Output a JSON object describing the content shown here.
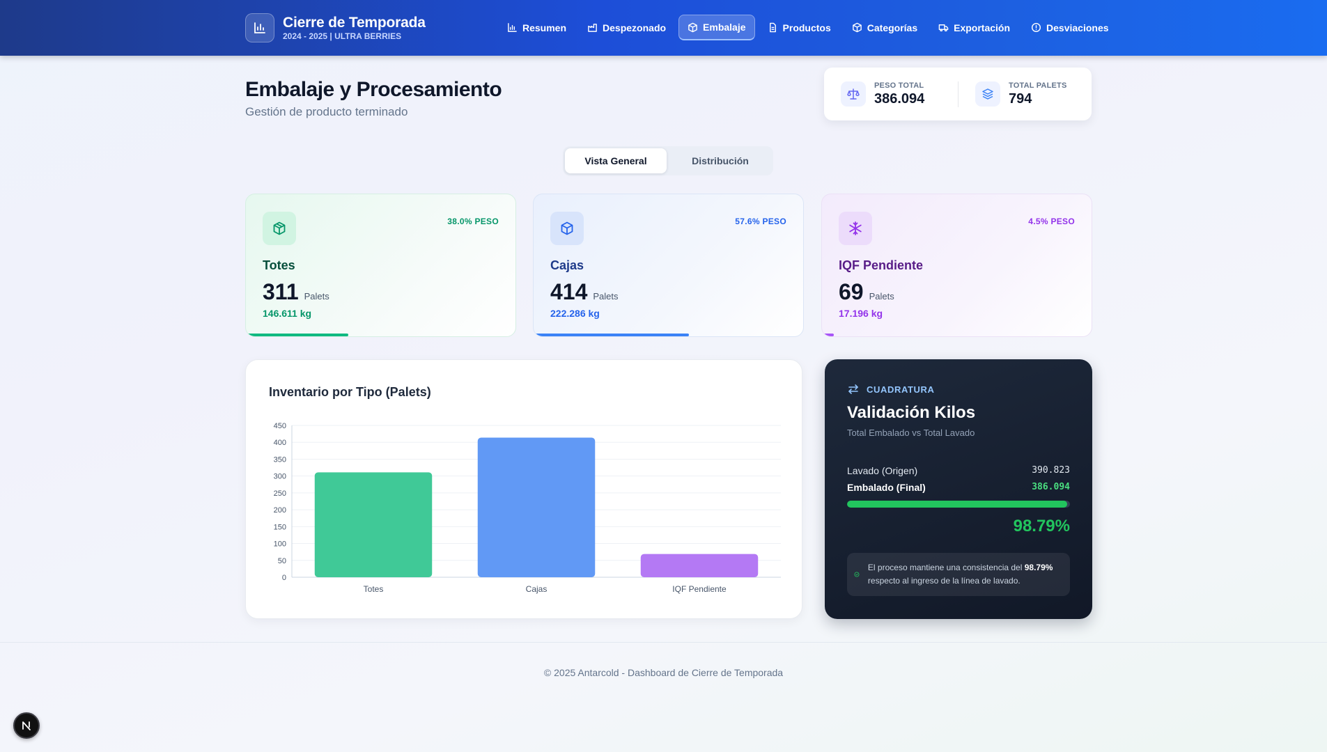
{
  "brand": {
    "title": "Cierre de Temporada",
    "subtitle": "2024 - 2025 | ULTRA BERRIES"
  },
  "nav": [
    {
      "label": "Resumen",
      "icon": "bar-chart-icon"
    },
    {
      "label": "Despezonado",
      "icon": "factory-icon"
    },
    {
      "label": "Embalaje",
      "icon": "box-icon",
      "active": true
    },
    {
      "label": "Productos",
      "icon": "document-icon"
    },
    {
      "label": "Categorías",
      "icon": "cube-icon"
    },
    {
      "label": "Exportación",
      "icon": "truck-icon"
    },
    {
      "label": "Desviaciones",
      "icon": "alert-circle-icon"
    }
  ],
  "page": {
    "title": "Embalaje y Procesamiento",
    "subtitle": "Gestión de producto terminado"
  },
  "stats": {
    "peso_label": "PESO TOTAL",
    "peso_value": "386.094",
    "palets_label": "TOTAL PALETS",
    "palets_value": "794"
  },
  "tabs": [
    {
      "label": "Vista General",
      "active": true
    },
    {
      "label": "Distribución"
    }
  ],
  "cards": [
    {
      "name": "Totes",
      "pct": "38.0% PESO",
      "count": "311",
      "unit": "Palets",
      "kg": "146.611 kg",
      "fill": 0.38,
      "color": "#10b981",
      "icon": "box-icon"
    },
    {
      "name": "Cajas",
      "pct": "57.6% PESO",
      "count": "414",
      "unit": "Palets",
      "kg": "222.286 kg",
      "fill": 0.576,
      "color": "#3b82f6",
      "icon": "box-icon"
    },
    {
      "name": "IQF Pendiente",
      "pct": "4.5% PESO",
      "count": "69",
      "unit": "Palets",
      "kg": "17.196 kg",
      "fill": 0.045,
      "color": "#a855f7",
      "icon": "snowflake-icon"
    }
  ],
  "chart_data": {
    "type": "bar",
    "title": "Inventario por Tipo (Palets)",
    "categories": [
      "Totes",
      "Cajas",
      "IQF Pendiente"
    ],
    "values": [
      311,
      414,
      69
    ],
    "colors": [
      "#40c997",
      "#6199f5",
      "#b479f4"
    ],
    "ylim": [
      0,
      450
    ],
    "yticks": [
      0,
      50,
      100,
      150,
      200,
      250,
      300,
      350,
      400,
      450
    ],
    "xlabel": "",
    "ylabel": "",
    "grid": true
  },
  "validation": {
    "tag": "CUADRATURA",
    "title": "Validación Kilos",
    "subtitle": "Total Embalado vs Total Lavado",
    "lavado_label": "Lavado (Origen)",
    "lavado_value": "390.823",
    "embalado_label": "Embalado (Final)",
    "embalado_value": "386.094",
    "ratio": 0.9879,
    "pct": "98.79%",
    "note_pre": "El proceso mantiene una consistencia del ",
    "note_bold": "98.79%",
    "note_post": " respecto al ingreso de la línea de lavado."
  },
  "footer": "© 2025 Antarcold - Dashboard de Cierre de Temporada",
  "badge": "N"
}
